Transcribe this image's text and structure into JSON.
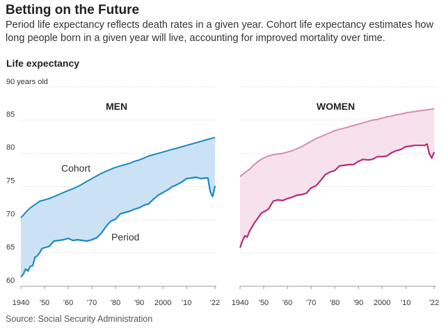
{
  "title": "Betting on the Future",
  "subtitle": "Period life expectancy reflects death rates in a given year. Cohort life expectancy estimates how long people born in a given year will live, accounting for improved mortality over time.",
  "source": "Source: Social Security Administration",
  "colors": {
    "men_line": "#1a88c4",
    "men_fill": "#cbe2f4",
    "women_period": "#b8287a",
    "women_cohort": "#d98bb3",
    "women_fill": "#f6e1ec"
  },
  "chart_data": {
    "type": "area",
    "ylabel": "Life expectancy",
    "yunit_label": "90 years old",
    "ylim": [
      60,
      90
    ],
    "yticks": [
      60,
      65,
      70,
      75,
      80,
      85
    ],
    "xlim": [
      1940,
      2022
    ],
    "xticks": [
      1940,
      1950,
      1960,
      1970,
      1980,
      1990,
      2000,
      2010,
      2022
    ],
    "xtick_labels": [
      "1940",
      "'50",
      "'60",
      "'70",
      "'80",
      "'90",
      "2000",
      "'10",
      "'22"
    ],
    "grid": true,
    "panels": [
      {
        "name": "MEN",
        "series": [
          {
            "name": "Cohort",
            "x": [
              1940,
              1942,
              1944,
              1946,
              1948,
              1950,
              1952,
              1954,
              1956,
              1958,
              1960,
              1962,
              1964,
              1966,
              1968,
              1970,
              1972,
              1974,
              1976,
              1978,
              1980,
              1982,
              1984,
              1986,
              1988,
              1990,
              1992,
              1994,
              1996,
              1998,
              2000,
              2002,
              2004,
              2006,
              2008,
              2010,
              2012,
              2014,
              2016,
              2018,
              2020,
              2022
            ],
            "values": [
              70.3,
              71.1,
              71.8,
              72.3,
              72.8,
              73.0,
              73.2,
              73.5,
              73.8,
              74.1,
              74.4,
              74.7,
              75.0,
              75.4,
              75.8,
              76.2,
              76.6,
              77.0,
              77.3,
              77.6,
              77.9,
              78.1,
              78.3,
              78.5,
              78.8,
              79.0,
              79.3,
              79.6,
              79.8,
              80.0,
              80.2,
              80.4,
              80.6,
              80.8,
              81.0,
              81.2,
              81.4,
              81.6,
              81.8,
              82.0,
              82.2,
              82.4
            ]
          },
          {
            "name": "Period",
            "x": [
              1940,
              1941,
              1942,
              1943,
              1944,
              1945,
              1946,
              1947,
              1948,
              1949,
              1950,
              1952,
              1954,
              1956,
              1958,
              1960,
              1962,
              1964,
              1966,
              1968,
              1970,
              1972,
              1974,
              1976,
              1978,
              1980,
              1982,
              1984,
              1986,
              1988,
              1990,
              1992,
              1994,
              1996,
              1998,
              2000,
              2002,
              2004,
              2006,
              2008,
              2010,
              2012,
              2014,
              2016,
              2018,
              2019,
              2020,
              2021,
              2022
            ],
            "values": [
              61.4,
              61.8,
              62.6,
              62.3,
              63.0,
              63.1,
              64.4,
              64.6,
              65.1,
              65.7,
              65.8,
              66.0,
              66.8,
              66.9,
              67.0,
              67.2,
              66.9,
              67.0,
              66.9,
              66.8,
              67.0,
              67.3,
              68.0,
              69.0,
              69.8,
              70.1,
              70.9,
              71.1,
              71.3,
              71.6,
              71.8,
              72.2,
              72.4,
              73.1,
              73.7,
              74.1,
              74.5,
              75.0,
              75.3,
              75.7,
              76.2,
              76.3,
              76.4,
              76.2,
              76.3,
              76.3,
              74.2,
              73.5,
              75.1
            ]
          }
        ],
        "labels": [
          "Cohort",
          "Period"
        ]
      },
      {
        "name": "WOMEN",
        "series": [
          {
            "name": "Cohort",
            "x": [
              1940,
              1942,
              1944,
              1946,
              1948,
              1950,
              1952,
              1954,
              1956,
              1958,
              1960,
              1962,
              1964,
              1966,
              1968,
              1970,
              1972,
              1974,
              1976,
              1978,
              1980,
              1982,
              1984,
              1986,
              1988,
              1990,
              1992,
              1994,
              1996,
              1998,
              2000,
              2002,
              2004,
              2006,
              2008,
              2010,
              2012,
              2014,
              2016,
              2018,
              2020,
              2022
            ],
            "values": [
              76.5,
              77.1,
              77.6,
              78.3,
              78.9,
              79.3,
              79.6,
              79.8,
              79.9,
              80.0,
              80.2,
              80.4,
              80.7,
              81.0,
              81.4,
              81.8,
              82.2,
              82.5,
              82.8,
              83.1,
              83.4,
              83.6,
              83.8,
              84.0,
              84.2,
              84.4,
              84.6,
              84.8,
              85.0,
              85.1,
              85.3,
              85.5,
              85.6,
              85.8,
              85.9,
              86.1,
              86.2,
              86.3,
              86.4,
              86.5,
              86.6,
              86.7
            ]
          },
          {
            "name": "Period",
            "x": [
              1940,
              1941,
              1942,
              1943,
              1944,
              1945,
              1946,
              1947,
              1948,
              1949,
              1950,
              1952,
              1954,
              1956,
              1958,
              1960,
              1962,
              1964,
              1966,
              1968,
              1970,
              1972,
              1974,
              1976,
              1978,
              1980,
              1982,
              1984,
              1986,
              1988,
              1990,
              1992,
              1994,
              1996,
              1998,
              2000,
              2002,
              2004,
              2006,
              2008,
              2010,
              2012,
              2014,
              2016,
              2018,
              2019,
              2020,
              2021,
              2022
            ],
            "values": [
              65.8,
              66.8,
              67.6,
              67.4,
              68.3,
              68.9,
              69.5,
              70.0,
              70.5,
              71.0,
              71.2,
              71.6,
              72.8,
              73.0,
              72.9,
              73.2,
              73.4,
              73.7,
              73.8,
              74.0,
              74.8,
              75.1,
              75.9,
              76.8,
              77.2,
              77.4,
              78.1,
              78.2,
              78.3,
              78.3,
              78.8,
              79.1,
              79.0,
              79.1,
              79.5,
              79.5,
              79.6,
              80.1,
              80.4,
              80.6,
              81.0,
              81.1,
              81.2,
              81.2,
              81.2,
              81.4,
              79.9,
              79.3,
              80.2
            ]
          }
        ],
        "labels": []
      }
    ]
  }
}
